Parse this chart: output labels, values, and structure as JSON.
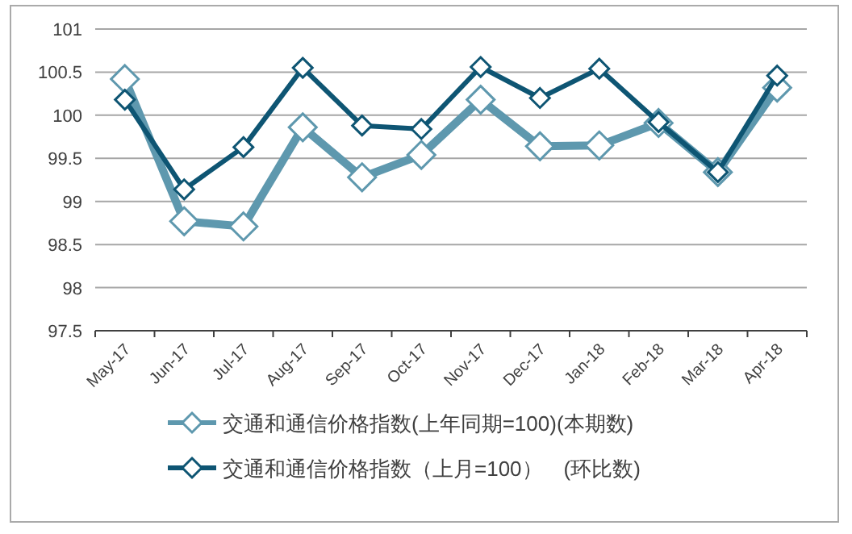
{
  "chart_data": {
    "type": "line",
    "categories": [
      "May-17",
      "Jun-17",
      "Jul-17",
      "Aug-17",
      "Sep-17",
      "Oct-17",
      "Nov-17",
      "Dec-17",
      "Jan-18",
      "Feb-18",
      "Mar-18",
      "Apr-18"
    ],
    "series": [
      {
        "name": "交通和通信价格指数(上年同期=100)(本期数)",
        "color": "#5e98ae",
        "values": [
          100.42,
          98.77,
          98.71,
          99.86,
          99.28,
          99.54,
          100.18,
          99.64,
          99.65,
          99.91,
          99.34,
          100.32
        ]
      },
      {
        "name": "交通和通信价格指数（上月=100）　(环比数)",
        "color": "#0e5573",
        "values": [
          100.18,
          99.14,
          99.63,
          100.55,
          99.88,
          99.84,
          100.56,
          100.2,
          100.54,
          99.92,
          99.34,
          100.46
        ]
      }
    ],
    "ylim": [
      97.5,
      101
    ],
    "yticks": [
      97.5,
      98,
      98.5,
      99,
      99.5,
      100,
      100.5,
      101
    ],
    "grid": "y",
    "legend": "bottom",
    "marker": "diamond",
    "line_style": "solid"
  }
}
